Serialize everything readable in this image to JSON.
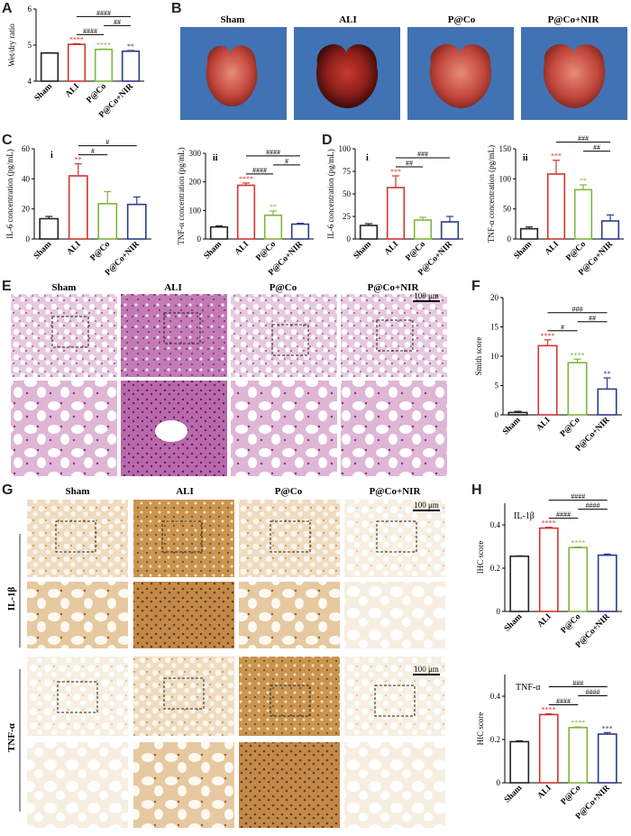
{
  "colors": {
    "sham": "#222222",
    "ali": "#d4342c",
    "pco": "#7fb53c",
    "pconir": "#2c3a8c",
    "lungBg": "#3f6fb0",
    "heLight": "#e8cfe2",
    "heDark": "#b04a9a",
    "ihcLight": "#f3e6d2",
    "ihcDark": "#b57a36"
  },
  "panels": {
    "A": "A",
    "B": "B",
    "C": "C",
    "D": "D",
    "E": "E",
    "F": "F",
    "G": "G",
    "H": "H"
  },
  "groups": [
    "Sham",
    "ALI",
    "P@Co",
    "P@Co+NIR"
  ],
  "subLabels": {
    "i": "i",
    "ii": "ii"
  },
  "scaleBars": {
    "E": "100 μm",
    "G1": "100 μm",
    "G2": "100 μm"
  },
  "rowLabels": {
    "il1b": "IL-1β",
    "tnfa": "TNF-α"
  },
  "chart_data": [
    {
      "id": "A",
      "type": "bar",
      "categories": [
        "Sham",
        "ALI",
        "P@Co",
        "P@Co+NIR"
      ],
      "values": [
        4.78,
        5.02,
        4.88,
        4.83
      ],
      "errors": [
        0.01,
        0.02,
        0.01,
        0.02
      ],
      "ylabel": "Wet/dry ratio",
      "ylim": [
        4,
        6
      ],
      "yticks": [
        4,
        5,
        6
      ],
      "stars": [
        "",
        "****",
        "****",
        "**"
      ],
      "brackets": [
        {
          "from": 1,
          "to": 2,
          "label": "####"
        },
        {
          "from": 2,
          "to": 3,
          "label": "##"
        },
        {
          "from": 1,
          "to": 3,
          "label": "####"
        }
      ]
    },
    {
      "id": "Ci",
      "type": "bar",
      "sub": "i",
      "categories": [
        "Sham",
        "ALI",
        "P@Co",
        "P@Co+NIR"
      ],
      "values": [
        13.5,
        42,
        23.5,
        23
      ],
      "errors": [
        1.5,
        8,
        8,
        5
      ],
      "ylabel": "IL-6 concentration (pg/mL)",
      "ylim": [
        0,
        60
      ],
      "yticks": [
        0,
        20,
        40,
        60
      ],
      "stars": [
        "",
        "**",
        "",
        ""
      ],
      "brackets": [
        {
          "from": 1,
          "to": 2,
          "label": "#"
        },
        {
          "from": 1,
          "to": 3,
          "label": "#"
        }
      ]
    },
    {
      "id": "Cii",
      "type": "bar",
      "sub": "ii",
      "categories": [
        "Sham",
        "ALI",
        "P@Co",
        "P@Co+NIR"
      ],
      "values": [
        42,
        188,
        83,
        52
      ],
      "errors": [
        4,
        8,
        15,
        3
      ],
      "ylabel": "TNF-α concentration (pg/mL)",
      "ylim": [
        0,
        300
      ],
      "yticks": [
        0,
        100,
        200,
        300
      ],
      "stars": [
        "",
        "****",
        "**",
        ""
      ],
      "brackets": [
        {
          "from": 1,
          "to": 2,
          "label": "####"
        },
        {
          "from": 2,
          "to": 3,
          "label": "#"
        },
        {
          "from": 1,
          "to": 3,
          "label": "####"
        }
      ]
    },
    {
      "id": "Di",
      "type": "bar",
      "sub": "i",
      "categories": [
        "Sham",
        "ALI",
        "P@Co",
        "P@Co+NIR"
      ],
      "values": [
        15,
        57,
        21,
        19
      ],
      "errors": [
        2,
        13,
        3,
        6
      ],
      "ylabel": "IL-6 concentration (pg/mL)",
      "ylim": [
        0,
        100
      ],
      "yticks": [
        0,
        25,
        50,
        75,
        100
      ],
      "stars": [
        "",
        "***",
        "",
        ""
      ],
      "brackets": [
        {
          "from": 1,
          "to": 2,
          "label": "##"
        },
        {
          "from": 1,
          "to": 3,
          "label": "###"
        }
      ]
    },
    {
      "id": "Dii",
      "type": "bar",
      "sub": "ii",
      "categories": [
        "Sham",
        "ALI",
        "P@Co",
        "P@Co+NIR"
      ],
      "values": [
        17,
        108,
        82,
        30
      ],
      "errors": [
        3,
        23,
        8,
        10
      ],
      "ylabel": "TNF-α concentration (pg/mL)",
      "ylim": [
        0,
        150
      ],
      "yticks": [
        0,
        50,
        100,
        150
      ],
      "stars": [
        "",
        "***",
        "**",
        ""
      ],
      "brackets": [
        {
          "from": 2,
          "to": 3,
          "label": "##"
        },
        {
          "from": 1,
          "to": 3,
          "label": "###"
        }
      ]
    },
    {
      "id": "F",
      "type": "bar",
      "categories": [
        "Sham",
        "ALI",
        "P@Co",
        "P@Co+NIR"
      ],
      "values": [
        0.4,
        11.8,
        8.9,
        4.4
      ],
      "errors": [
        0.2,
        1.0,
        0.6,
        1.9
      ],
      "ylabel": "Smith score",
      "ylim": [
        0,
        20
      ],
      "yticks": [
        0,
        5,
        10,
        15,
        20
      ],
      "stars": [
        "",
        "****",
        "****",
        "**"
      ],
      "brackets": [
        {
          "from": 1,
          "to": 2,
          "label": "#"
        },
        {
          "from": 2,
          "to": 3,
          "label": "##"
        },
        {
          "from": 1,
          "to": 3,
          "label": "###"
        }
      ]
    },
    {
      "id": "H1",
      "type": "bar",
      "note": "IL-1β",
      "categories": [
        "Sham",
        "ALI",
        "P@Co",
        "P@Co+NIR"
      ],
      "values": [
        0.255,
        0.385,
        0.295,
        0.26
      ],
      "errors": [
        0.002,
        0.004,
        0.003,
        0.005
      ],
      "ylabel": "IHC score",
      "ylim": [
        0,
        0.5
      ],
      "yticks": [
        0,
        0.2,
        0.4
      ],
      "stars": [
        "",
        "****",
        "****",
        ""
      ],
      "brackets": [
        {
          "from": 1,
          "to": 2,
          "label": "####"
        },
        {
          "from": 2,
          "to": 3,
          "label": "####"
        },
        {
          "from": 1,
          "to": 3,
          "label": "####"
        }
      ]
    },
    {
      "id": "H2",
      "type": "bar",
      "note": "TNF-α",
      "categories": [
        "Sham",
        "ALI",
        "P@Co",
        "P@Co+NIR"
      ],
      "values": [
        0.19,
        0.315,
        0.255,
        0.225
      ],
      "errors": [
        0.004,
        0.004,
        0.003,
        0.007
      ],
      "ylabel": "HIC score",
      "ylim": [
        0,
        0.5
      ],
      "yticks": [
        0,
        0.2,
        0.4
      ],
      "stars": [
        "",
        "****",
        "****",
        "***"
      ],
      "brackets": [
        {
          "from": 1,
          "to": 2,
          "label": "####"
        },
        {
          "from": 2,
          "to": 3,
          "label": "####"
        },
        {
          "from": 1,
          "to": 3,
          "label": "###"
        }
      ]
    }
  ]
}
